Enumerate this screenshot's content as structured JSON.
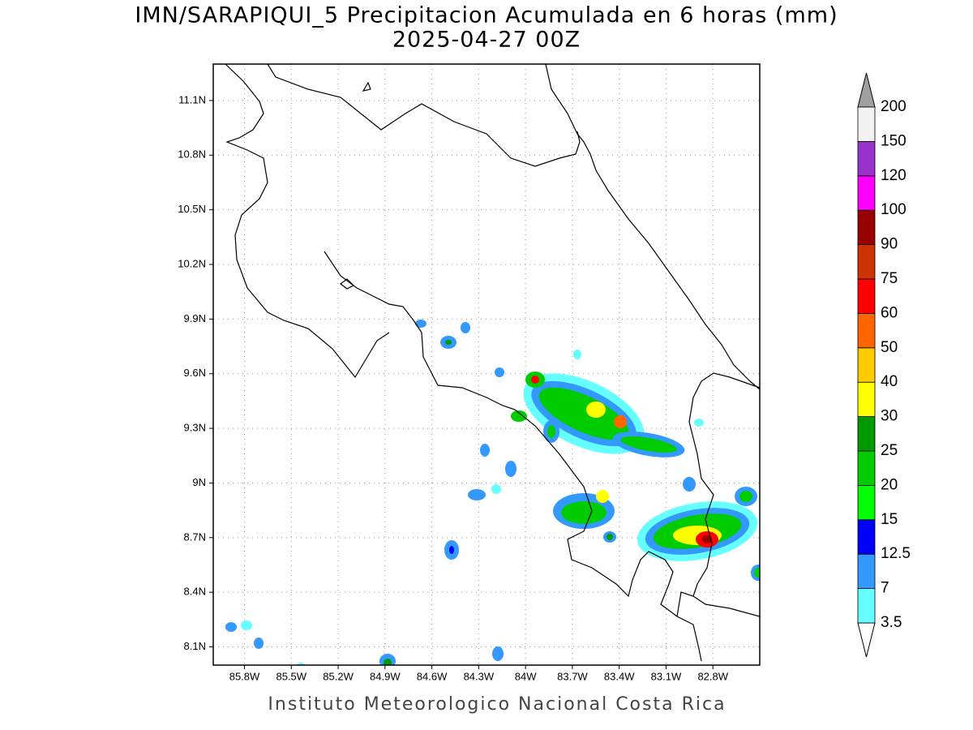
{
  "title": "IMN/SARAPIQUI_5 Precipitacion Acumulada en 6 horas (mm)",
  "subtitle": "2025-04-27 00Z",
  "footer": "Instituto Meteorologico Nacional Costa Rica",
  "map": {
    "xlim": [
      86.0,
      82.5
    ],
    "ylim": [
      8.0,
      11.3
    ],
    "xticks": [
      {
        "value": 85.8,
        "label": "85.8W"
      },
      {
        "value": 85.5,
        "label": "85.5W"
      },
      {
        "value": 85.2,
        "label": "85.2W"
      },
      {
        "value": 84.9,
        "label": "84.9W"
      },
      {
        "value": 84.6,
        "label": "84.6W"
      },
      {
        "value": 84.3,
        "label": "84.3W"
      },
      {
        "value": 84.0,
        "label": "84W"
      },
      {
        "value": 83.7,
        "label": "83.7W"
      },
      {
        "value": 83.4,
        "label": "83.4W"
      },
      {
        "value": 83.1,
        "label": "83.1W"
      },
      {
        "value": 82.8,
        "label": "82.8W"
      }
    ],
    "yticks": [
      {
        "value": 8.1,
        "label": "8.1N"
      },
      {
        "value": 8.4,
        "label": "8.4N"
      },
      {
        "value": 8.7,
        "label": "8.7N"
      },
      {
        "value": 9.0,
        "label": "9N"
      },
      {
        "value": 9.3,
        "label": "9.3N"
      },
      {
        "value": 9.6,
        "label": "9.6N"
      },
      {
        "value": 9.9,
        "label": "9.9N"
      },
      {
        "value": 10.2,
        "label": "10.2N"
      },
      {
        "value": 10.5,
        "label": "10.5N"
      },
      {
        "value": 10.8,
        "label": "10.8N"
      },
      {
        "value": 11.1,
        "label": "11.1N"
      }
    ],
    "grid": true
  },
  "colorbar": {
    "levels": [
      3.5,
      7,
      12.5,
      15,
      20,
      25,
      30,
      40,
      50,
      60,
      75,
      90,
      100,
      120,
      150,
      200
    ],
    "colors": [
      "#66ffff",
      "#3399ff",
      "#0000ff",
      "#00ff00",
      "#00cc00",
      "#009900",
      "#ffff00",
      "#ffcc00",
      "#ff6600",
      "#ff0000",
      "#cc3300",
      "#990000",
      "#ff00ff",
      "#9933cc",
      "#f2f2f2"
    ],
    "under_color": "#ffffff",
    "over_color": "#a0a0a0"
  }
}
